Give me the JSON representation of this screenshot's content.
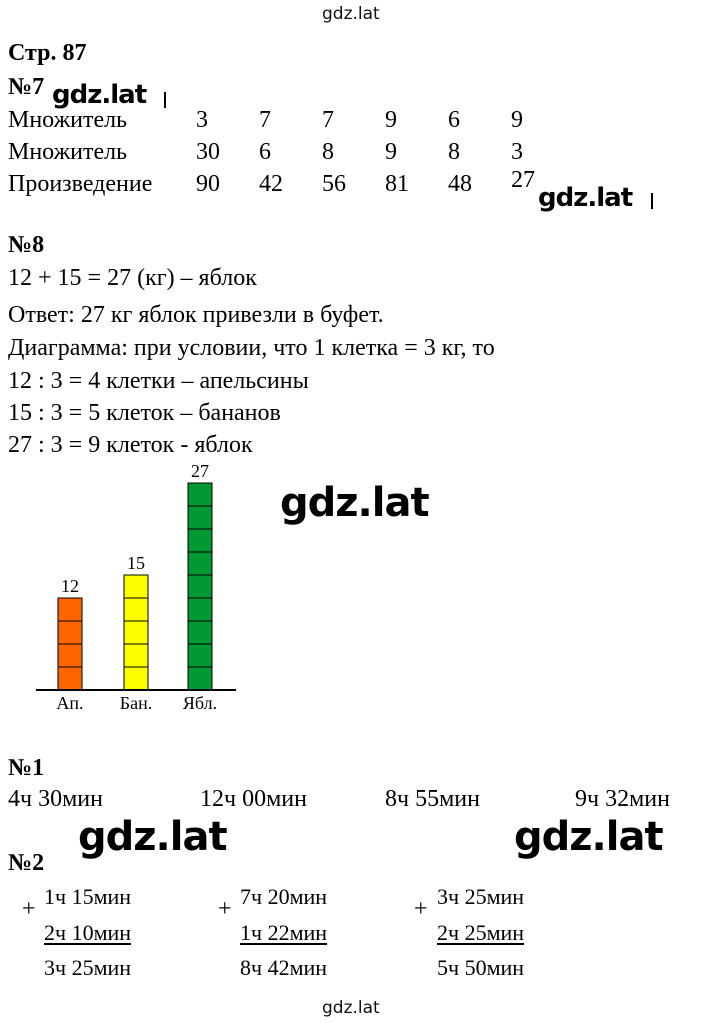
{
  "watermark_top": "gdz.lat",
  "watermark_bottom": "gdz.lat",
  "watermark_inline": "gdz.lat",
  "page_header": "Стр. 87",
  "task7": {
    "label": "№7",
    "rows": [
      {
        "label": "Множитель",
        "values": [
          "3",
          "7",
          "7",
          "9",
          "6",
          "9"
        ]
      },
      {
        "label": "Множитель",
        "values": [
          "30",
          "6",
          "8",
          "9",
          "8",
          "3"
        ]
      },
      {
        "label": "Произведение",
        "values": [
          "90",
          "42",
          "56",
          "81",
          "48",
          "27"
        ]
      }
    ]
  },
  "task8": {
    "label": "№8",
    "lines": [
      "12 + 15 = 27 (кг) – яблок",
      "Ответ: 27 кг яблок привезли в буфет.",
      "Диаграмма: при условии, что 1 клетка = 3 кг, то",
      "12 : 3 = 4 клетки – апельсины",
      "15 : 3 = 5 клеток – бананов",
      "27 : 3 = 9 клеток - яблок"
    ]
  },
  "chart_data": {
    "type": "bar",
    "categories": [
      "Ап.",
      "Бан.",
      "Ябл."
    ],
    "values": [
      12,
      15,
      27
    ],
    "cells": [
      4,
      5,
      9
    ],
    "cell_value": 3,
    "colors": [
      "#ff6600",
      "#ffff00",
      "#009933"
    ],
    "data_labels": [
      "12",
      "15",
      "27"
    ],
    "grid": true
  },
  "task1": {
    "label": "№1",
    "values": [
      "4ч 30мин",
      "12ч 00мин",
      "8ч 55мин",
      "9ч 32мин"
    ]
  },
  "task2": {
    "label": "№2",
    "plus": "+",
    "sums": [
      {
        "a": "1ч 15мин",
        "b": "2ч 10мин",
        "result": "3ч 25мин"
      },
      {
        "a": "7ч 20мин",
        "b": "1ч 22мин",
        "result": "8ч 42мин"
      },
      {
        "a": "3ч 25мин",
        "b": "2ч 25мин",
        "result": "5ч 50мин"
      }
    ]
  }
}
